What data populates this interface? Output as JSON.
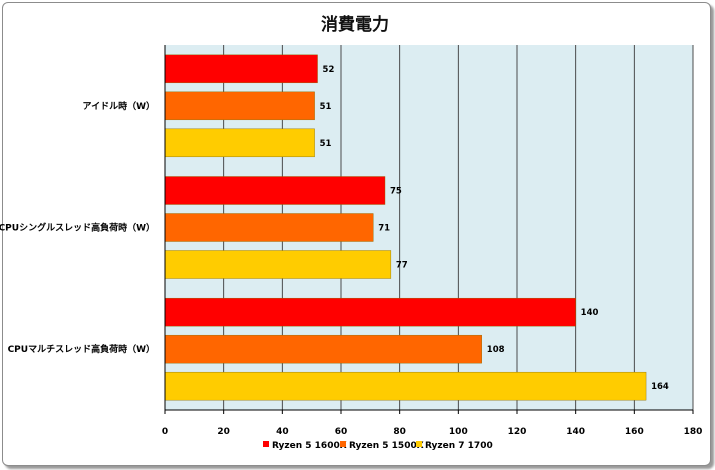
{
  "chart_data": {
    "type": "bar",
    "orientation": "horizontal",
    "title": "消費電力",
    "categories": [
      "アイドル時（W）",
      "CPUシングルスレッド高負荷時（W）",
      "CPUマルチスレッド高負荷時（W）"
    ],
    "series": [
      {
        "name": "Ryzen 5 1600X",
        "color": "#ff0000",
        "values": [
          52,
          75,
          140
        ]
      },
      {
        "name": "Ryzen 5 1500X",
        "color": "#ff6600",
        "values": [
          51,
          71,
          108
        ]
      },
      {
        "name": "Ryzen 7 1700",
        "color": "#ffcc00",
        "values": [
          51,
          77,
          164
        ]
      }
    ],
    "xlim": [
      0,
      180
    ],
    "xticks": [
      0,
      20,
      40,
      60,
      80,
      100,
      120,
      140,
      160,
      180
    ],
    "grid": true,
    "legend_position": "bottom",
    "plot_background": "#dcedf2"
  }
}
